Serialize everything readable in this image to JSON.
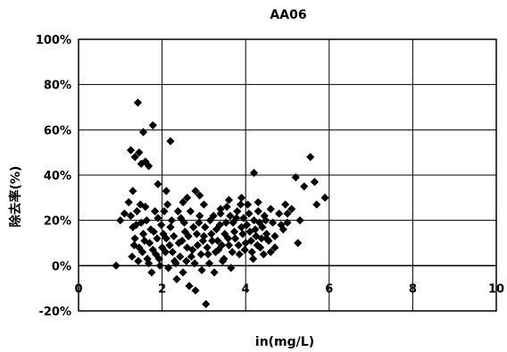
{
  "chart_data": {
    "type": "scatter",
    "title": "AA06",
    "xlabel": "in(mg/L)",
    "ylabel": "除去率(%)",
    "xlim": [
      0,
      10
    ],
    "ylim": [
      -20,
      100
    ],
    "x_ticks": [
      "0",
      "2",
      "4",
      "6",
      "8",
      "10"
    ],
    "y_ticks": [
      "100%",
      "80%",
      "60%",
      "40%",
      "20%",
      "0%",
      "-20%"
    ],
    "grid": true,
    "legend": "none",
    "marker": "diamond",
    "color": "#000000",
    "points": [
      [
        1.42,
        72
      ],
      [
        1.78,
        62
      ],
      [
        1.55,
        59
      ],
      [
        2.2,
        55
      ],
      [
        1.25,
        51
      ],
      [
        1.45,
        50
      ],
      [
        1.35,
        48
      ],
      [
        1.6,
        46
      ],
      [
        1.5,
        45
      ],
      [
        1.68,
        44
      ],
      [
        5.55,
        48
      ],
      [
        5.65,
        37
      ],
      [
        5.9,
        30
      ],
      [
        5.7,
        27
      ],
      [
        5.2,
        39
      ],
      [
        4.2,
        41
      ],
      [
        5.4,
        35
      ],
      [
        1.9,
        36
      ],
      [
        2.1,
        33
      ],
      [
        2.8,
        33
      ],
      [
        1.3,
        33
      ],
      [
        2.6,
        30
      ],
      [
        2.5,
        28
      ],
      [
        2.9,
        31
      ],
      [
        3.0,
        27
      ],
      [
        3.4,
        25
      ],
      [
        3.6,
        29
      ],
      [
        3.9,
        30
      ],
      [
        4.3,
        28
      ],
      [
        4.6,
        25
      ],
      [
        4.95,
        27
      ],
      [
        5.1,
        25
      ],
      [
        5.3,
        20
      ],
      [
        5.0,
        23
      ],
      [
        5.25,
        10
      ],
      [
        4.85,
        18
      ],
      [
        4.5,
        12
      ],
      [
        4.7,
        8
      ],
      [
        0.9,
        0
      ],
      [
        1.0,
        20
      ],
      [
        1.1,
        23
      ],
      [
        1.2,
        28
      ],
      [
        1.25,
        22
      ],
      [
        1.3,
        17
      ],
      [
        1.35,
        12
      ],
      [
        1.4,
        24
      ],
      [
        1.45,
        8
      ],
      [
        1.5,
        19
      ],
      [
        1.55,
        14
      ],
      [
        1.6,
        26
      ],
      [
        1.65,
        3
      ],
      [
        1.7,
        10
      ],
      [
        1.75,
        -3
      ],
      [
        1.8,
        15
      ],
      [
        1.85,
        5
      ],
      [
        1.9,
        21
      ],
      [
        1.95,
        0
      ],
      [
        2.0,
        8
      ],
      [
        2.05,
        24
      ],
      [
        2.1,
        12
      ],
      [
        2.15,
        -1
      ],
      [
        2.2,
        17
      ],
      [
        2.25,
        6
      ],
      [
        2.3,
        2
      ],
      [
        2.35,
        -6
      ],
      [
        2.4,
        10
      ],
      [
        2.45,
        21
      ],
      [
        2.5,
        -3
      ],
      [
        2.55,
        15
      ],
      [
        2.6,
        8
      ],
      [
        2.65,
        -9
      ],
      [
        2.7,
        4
      ],
      [
        2.75,
        17
      ],
      [
        2.8,
        -11
      ],
      [
        2.85,
        9
      ],
      [
        2.9,
        22
      ],
      [
        2.95,
        -2
      ],
      [
        3.0,
        13
      ],
      [
        3.05,
        -17
      ],
      [
        3.1,
        5
      ],
      [
        3.15,
        20
      ],
      [
        3.2,
        11
      ],
      [
        3.25,
        -3
      ],
      [
        3.3,
        16
      ],
      [
        3.35,
        7
      ],
      [
        3.4,
        23
      ],
      [
        3.45,
        2
      ],
      [
        3.5,
        14
      ],
      [
        3.55,
        26
      ],
      [
        3.6,
        9
      ],
      [
        3.65,
        -1
      ],
      [
        3.7,
        19
      ],
      [
        3.75,
        12
      ],
      [
        3.8,
        24
      ],
      [
        3.85,
        5
      ],
      [
        3.9,
        17
      ],
      [
        3.95,
        21
      ],
      [
        4.0,
        10
      ],
      [
        4.05,
        27
      ],
      [
        4.1,
        15
      ],
      [
        4.15,
        6
      ],
      [
        4.2,
        20
      ],
      [
        4.25,
        13
      ],
      [
        4.3,
        24
      ],
      [
        4.35,
        8
      ],
      [
        4.4,
        17
      ],
      [
        4.45,
        22
      ],
      [
        4.5,
        14
      ],
      [
        4.55,
        11
      ],
      [
        4.6,
        6
      ],
      [
        4.65,
        19
      ],
      [
        4.7,
        13
      ],
      [
        4.8,
        23
      ],
      [
        4.9,
        16
      ],
      [
        5.0,
        19
      ],
      [
        1.28,
        4
      ],
      [
        1.33,
        9
      ],
      [
        1.38,
        18
      ],
      [
        1.43,
        2
      ],
      [
        1.48,
        27
      ],
      [
        1.53,
        6
      ],
      [
        1.58,
        11
      ],
      [
        1.63,
        20
      ],
      [
        1.68,
        1
      ],
      [
        1.73,
        16
      ],
      [
        1.78,
        7
      ],
      [
        1.83,
        24
      ],
      [
        1.88,
        12
      ],
      [
        1.93,
        3
      ],
      [
        1.98,
        18
      ],
      [
        2.03,
        14
      ],
      [
        2.08,
        6
      ],
      [
        2.13,
        27
      ],
      [
        2.18,
        9
      ],
      [
        2.23,
        20
      ],
      [
        2.28,
        13
      ],
      [
        2.33,
        1
      ],
      [
        2.38,
        24
      ],
      [
        2.43,
        4
      ],
      [
        2.48,
        11
      ],
      [
        2.53,
        19
      ],
      [
        2.58,
        2
      ],
      [
        2.63,
        13
      ],
      [
        2.68,
        24
      ],
      [
        2.73,
        7
      ],
      [
        2.78,
        1
      ],
      [
        2.83,
        14
      ],
      [
        2.88,
        19
      ],
      [
        2.93,
        5
      ],
      [
        2.98,
        11
      ],
      [
        3.03,
        17
      ],
      [
        3.08,
        8
      ],
      [
        3.13,
        1
      ],
      [
        3.18,
        14
      ],
      [
        3.23,
        22
      ],
      [
        3.28,
        6
      ],
      [
        3.33,
        11
      ],
      [
        3.38,
        18
      ],
      [
        3.43,
        9
      ],
      [
        3.48,
        3
      ],
      [
        3.53,
        19
      ],
      [
        3.58,
        12
      ],
      [
        3.63,
        22
      ],
      [
        3.68,
        6
      ],
      [
        3.73,
        15
      ],
      [
        3.78,
        21
      ],
      [
        3.83,
        9
      ],
      [
        3.88,
        27
      ],
      [
        3.93,
        14
      ],
      [
        3.98,
        7
      ],
      [
        4.03,
        18
      ],
      [
        4.08,
        23
      ],
      [
        4.13,
        11
      ],
      [
        4.18,
        3
      ],
      [
        4.23,
        16
      ],
      [
        4.28,
        9
      ],
      [
        4.33,
        19
      ],
      [
        4.38,
        12
      ],
      [
        4.43,
        5
      ],
      [
        4.48,
        20
      ]
    ]
  }
}
